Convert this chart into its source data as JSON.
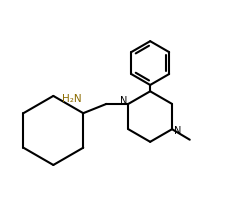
{
  "background_color": "#ffffff",
  "line_color": "#000000",
  "nh2_color": "#8B6B00",
  "n_color": "#000000",
  "lw": 1.5,
  "xlim": [
    0.0,
    5.5
  ],
  "ylim": [
    0.0,
    5.2
  ]
}
